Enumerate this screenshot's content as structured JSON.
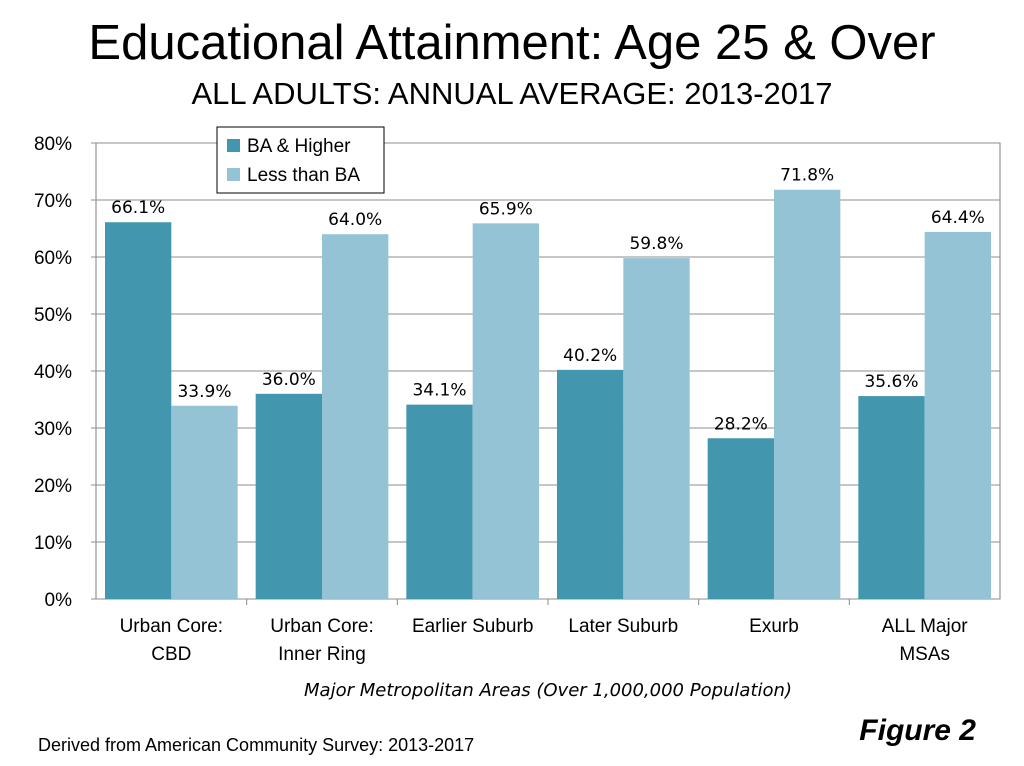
{
  "chart_data": {
    "type": "bar",
    "title": "Educational Attainment: Age 25 & Over",
    "subtitle": "ALL ADULTS: ANNUAL AVERAGE: 2013-2017",
    "xlabel": "Major Metropolitan Areas (Over 1,000,000 Population)",
    "ylabel": "",
    "categories": [
      [
        "Urban Core:",
        "CBD"
      ],
      [
        "Urban Core:",
        "Inner Ring"
      ],
      [
        "Earlier Suburb"
      ],
      [
        "Later Suburb"
      ],
      [
        "Exurb"
      ],
      [
        "ALL Major",
        "MSAs"
      ]
    ],
    "series": [
      {
        "name": "BA & Higher",
        "color": "#4297ae",
        "values": [
          66.1,
          36.0,
          34.1,
          40.2,
          28.2,
          35.6
        ]
      },
      {
        "name": "Less than BA",
        "color": "#93c3d5",
        "values": [
          33.9,
          64.0,
          65.9,
          59.8,
          71.8,
          64.4
        ]
      }
    ],
    "data_labels": [
      [
        "66.1%",
        "36.0%",
        "34.1%",
        "40.2%",
        "28.2%",
        "35.6%"
      ],
      [
        "33.9%",
        "64.0%",
        "65.9%",
        "59.8%",
        "71.8%",
        "64.4%"
      ]
    ],
    "ylim": [
      0,
      80
    ],
    "yticks": [
      0,
      10,
      20,
      30,
      40,
      50,
      60,
      70,
      80
    ],
    "ytick_labels": [
      "0%",
      "10%",
      "20%",
      "30%",
      "40%",
      "50%",
      "60%",
      "70%",
      "80%"
    ],
    "grid": true,
    "legend_position": "top-left"
  },
  "footer": {
    "source": "Derived from American Community Survey: 2013-2017",
    "figure_label": "Figure 2"
  }
}
